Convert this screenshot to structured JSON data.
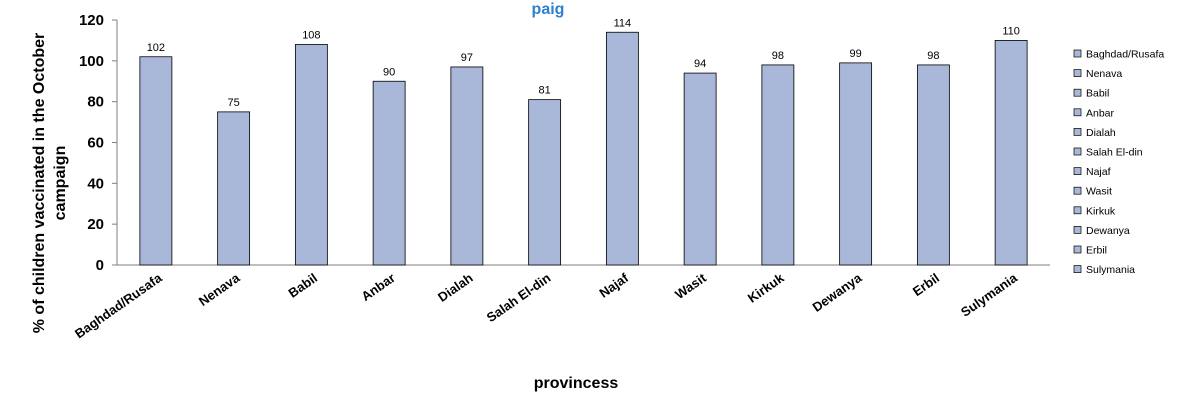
{
  "chart_data": {
    "type": "bar",
    "title_fragment": "paig",
    "xlabel": "provincess",
    "ylabel_lines": [
      "% of children  vaccinated in the October",
      "campaign"
    ],
    "ylim": [
      0,
      120
    ],
    "yticks": [
      "0",
      "20",
      "40",
      "60",
      "80",
      "100",
      "120"
    ],
    "categories": [
      "Baghdad/Rusafa",
      "Nenava",
      "Babil",
      "Anbar",
      "Dialah",
      "Salah El-din",
      "Najaf",
      "Wasit",
      "Kirkuk",
      "Dewanya",
      "Erbil",
      "Sulymania"
    ],
    "values": [
      102,
      75,
      108,
      90,
      97,
      81,
      114,
      94,
      98,
      99,
      98,
      110
    ],
    "value_labels": [
      "102",
      "75",
      "108",
      "90",
      "97",
      "81",
      "114",
      "94",
      "98",
      "99",
      "98",
      "110"
    ],
    "legend": [
      "Baghdad/Rusafa",
      "Nenava",
      "Babil",
      "Anbar",
      "Dialah",
      "Salah El-din",
      "Najaf",
      "Wasit",
      "Kirkuk",
      "Dewanya",
      "Erbil",
      "Sulymania"
    ],
    "legend_position": "right",
    "grid": false,
    "bar_color": "#a9b8d9",
    "bar_border_color": "#000000"
  }
}
